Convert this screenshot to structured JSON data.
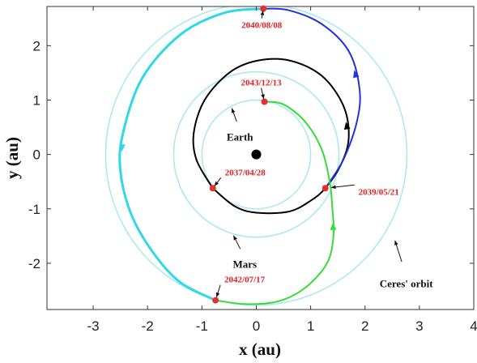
{
  "chart_data": {
    "type": "trajectory",
    "x_label": "x (au)",
    "y_label": "y (au)",
    "xlim": [
      -3.85,
      4.0
    ],
    "ylim": [
      -2.85,
      2.72
    ],
    "xticks": [
      -3,
      -2,
      -1,
      0,
      1,
      2,
      3,
      4
    ],
    "yticks": [
      -2,
      -1,
      0,
      1,
      2
    ],
    "center": {
      "x": 0,
      "y": 0,
      "color": "#000000"
    },
    "orbits": [
      {
        "r": 1.0,
        "color": "#a8e8f0"
      },
      {
        "r": 1.52,
        "color": "#a8e8f0"
      },
      {
        "r": 2.77,
        "color": "#a8e8f0"
      }
    ],
    "series": [
      {
        "color": "#000000",
        "width": 2,
        "x": [
          -0.8,
          -0.4,
          0,
          0.6,
          1.0,
          1.27,
          1.55,
          1.7,
          1.6,
          1.2,
          0.6,
          0.0,
          -0.5,
          -0.95,
          -1.15,
          -1.1,
          -0.8
        ],
        "y": [
          -0.62,
          -0.95,
          -1.07,
          -1.05,
          -0.85,
          -0.62,
          -0.2,
          0.3,
          0.9,
          1.45,
          1.73,
          1.72,
          1.5,
          1.0,
          0.4,
          -0.1,
          -0.62
        ]
      },
      {
        "color": "#2233dd",
        "width": 2,
        "x": [
          1.27,
          1.6,
          1.85,
          1.9,
          1.7,
          1.2,
          0.6,
          0.13
        ],
        "y": [
          -0.62,
          -0.1,
          0.6,
          1.2,
          1.9,
          2.4,
          2.65,
          2.68
        ]
      },
      {
        "color": "#2fd8e8",
        "width": 3,
        "x": [
          0.13,
          -0.6,
          -1.4,
          -2.1,
          -2.45,
          -2.5,
          -2.3,
          -1.9,
          -1.4,
          -0.75
        ],
        "y": [
          2.68,
          2.6,
          2.2,
          1.4,
          0.4,
          -0.3,
          -1.1,
          -1.8,
          -2.35,
          -2.68
        ]
      },
      {
        "color": "#33dd33",
        "width": 2,
        "x": [
          -0.75,
          -0.2,
          0.4,
          0.9,
          1.3,
          1.42,
          1.4,
          1.35,
          1.2,
          0.9,
          0.5,
          0.15
        ],
        "y": [
          -2.68,
          -2.75,
          -2.7,
          -2.45,
          -2.0,
          -1.5,
          -1.0,
          -0.5,
          0.1,
          0.6,
          0.92,
          0.97
        ]
      }
    ],
    "points": [
      {
        "label": "2040/08/08",
        "x": 0.13,
        "y": 2.68
      },
      {
        "label": "2043/12/13",
        "x": 0.15,
        "y": 0.97
      },
      {
        "label": "2037/04/28",
        "x": -0.8,
        "y": -0.62
      },
      {
        "label": "2039/05/21",
        "x": 1.27,
        "y": -0.62
      },
      {
        "label": "2042/07/17",
        "x": -0.75,
        "y": -2.68
      }
    ],
    "point_color": "#e03030",
    "annotations": [
      {
        "text": "Earth",
        "x": -0.45,
        "y": 0.85
      },
      {
        "text": "Mars",
        "x": -0.42,
        "y": -1.49
      },
      {
        "text": "Ceres' orbit",
        "x": 2.55,
        "y": -1.58
      }
    ]
  }
}
